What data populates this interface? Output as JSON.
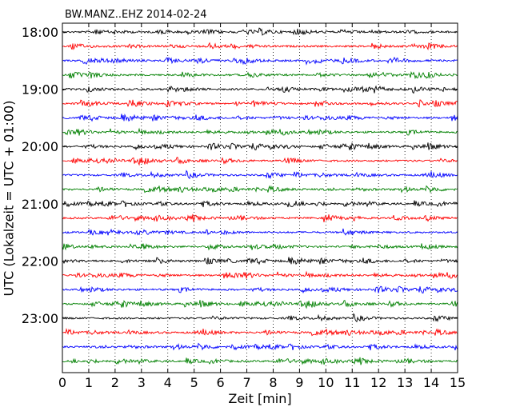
{
  "chart_data": {
    "type": "line",
    "title": "BW.MANZ..EHZ 2014-02-24",
    "xlabel": "Zeit  [min]",
    "ylabel": "UTC (Lokalzeit = UTC + 01:00)",
    "xlim": [
      0,
      15
    ],
    "x_ticks": [
      0,
      1,
      2,
      3,
      4,
      5,
      6,
      7,
      8,
      9,
      10,
      11,
      12,
      13,
      14,
      15
    ],
    "y_tick_labels": [
      "18:00",
      "19:00",
      "20:00",
      "21:00",
      "22:00",
      "23:00"
    ],
    "trace_starts": [
      "18:00",
      "18:15",
      "18:30",
      "18:45",
      "19:00",
      "19:15",
      "19:30",
      "19:45",
      "20:00",
      "20:15",
      "20:30",
      "20:45",
      "21:00",
      "21:15",
      "21:30",
      "21:45",
      "22:00",
      "22:15",
      "22:30",
      "22:45",
      "23:00",
      "23:15",
      "23:30",
      "23:45"
    ],
    "trace_colors": [
      "#000000",
      "#ff0000",
      "#0000ff",
      "#008000"
    ],
    "vertical_grid": true,
    "grid_style": "dotted"
  }
}
